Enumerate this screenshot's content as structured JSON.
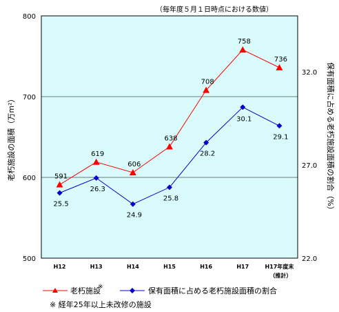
{
  "header_note": "（毎年度５月１日時点における数値）",
  "footnote": "※ 経年25年以上未改修の施設",
  "chart_data": {
    "type": "line",
    "categories": [
      "H12",
      "H13",
      "H14",
      "H15",
      "H16",
      "H17",
      "H17年度末"
    ],
    "category_sublabels": [
      "",
      "",
      "",
      "",
      "",
      "",
      "（推計）"
    ],
    "ylabel_left": "老朽施設の面積（万m²）",
    "ylabel_right": "保有面積に占める老朽施設面積の割合（%）",
    "ylim_left": [
      500,
      800
    ],
    "ylim_right": [
      22.0,
      35.0
    ],
    "yticks_left": [
      500,
      600,
      700,
      800
    ],
    "yticks_right": [
      "22.0",
      "27.0",
      "32.0"
    ],
    "plot_background": "#d9fbfb",
    "legend_placement": "bottom",
    "series": [
      {
        "name": "老朽施設",
        "name_mark": "※",
        "axis": "left",
        "color": "#ff0000",
        "marker": "triangle",
        "values": [
          591,
          619,
          606,
          638,
          708,
          758,
          736
        ],
        "labels": [
          "591",
          "619",
          "606",
          "638",
          "708",
          "758",
          "736"
        ]
      },
      {
        "name": "保有面積に占める老朽施設面積の割合",
        "axis": "right",
        "color": "#0000cc",
        "marker": "diamond",
        "values": [
          25.5,
          26.3,
          24.9,
          25.8,
          28.2,
          30.1,
          29.1
        ],
        "labels": [
          "25.5",
          "26.3",
          "24.9",
          "25.8",
          "28.2",
          "30.1",
          "29.1"
        ]
      }
    ]
  }
}
